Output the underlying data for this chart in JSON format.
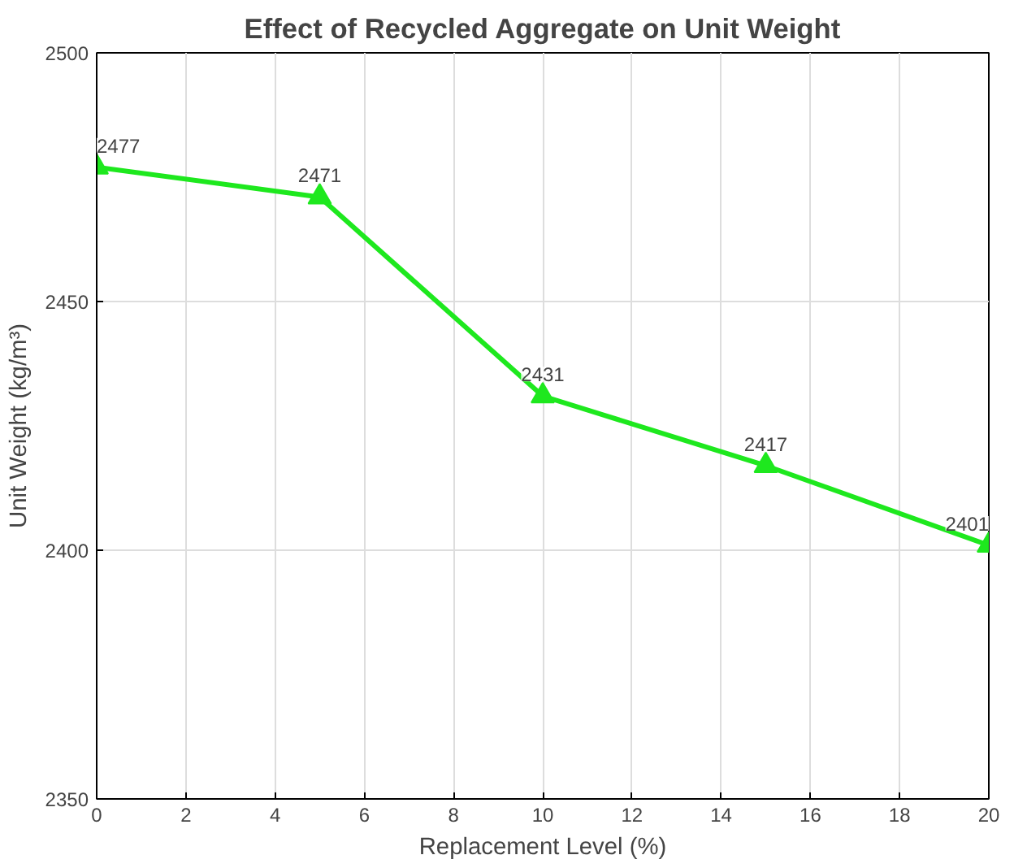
{
  "chart_data": {
    "type": "line",
    "title": "Effect of Recycled Aggregate on Unit Weight",
    "xlabel": "Replacement Level (%)",
    "ylabel": "Unit Weight (kg/m³)",
    "x": [
      0,
      5,
      10,
      15,
      20
    ],
    "series": [
      {
        "color": "#1ee81e",
        "values": [
          2477,
          2471,
          2431,
          2417,
          2401
        ]
      }
    ],
    "xlim": [
      0,
      20
    ],
    "xticks": [
      0,
      2,
      4,
      6,
      8,
      10,
      12,
      14,
      16,
      18,
      20
    ],
    "ylim": [
      2350,
      2500
    ],
    "yticks": [
      2350,
      2400,
      2450,
      2500
    ],
    "grid": true,
    "marker": "triangle",
    "line_style": "solid",
    "data_labels": true
  }
}
